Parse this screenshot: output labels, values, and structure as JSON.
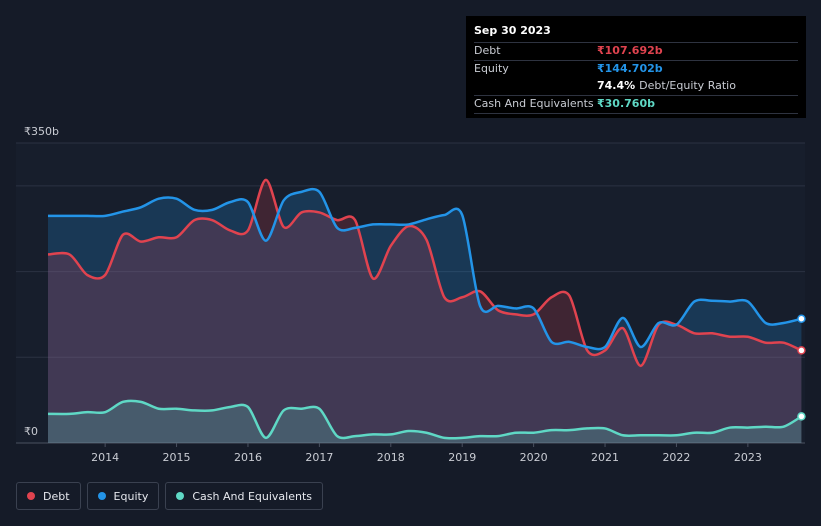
{
  "tooltip": {
    "date": "Sep 30 2023",
    "debt_label": "Debt",
    "debt_value": "₹107.692b",
    "equity_label": "Equity",
    "equity_value": "₹144.702b",
    "ratio_value": "74.4%",
    "ratio_label": "Debt/Equity Ratio",
    "cash_label": "Cash And Equivalents",
    "cash_value": "₹30.760b"
  },
  "legend": [
    {
      "label": "Debt",
      "color": "#e0434f"
    },
    {
      "label": "Equity",
      "color": "#2394e8"
    },
    {
      "label": "Cash And Equivalents",
      "color": "#5fd8c5"
    }
  ],
  "chart_data": {
    "type": "area",
    "title": "",
    "xlabel": "",
    "ylabel": "",
    "y_top_label": "₹350b",
    "y_bottom_label": "₹0",
    "ylim": [
      0,
      350
    ],
    "xlim": [
      2013.2,
      2023.8
    ],
    "x_ticks": [
      "2014",
      "2015",
      "2016",
      "2017",
      "2018",
      "2019",
      "2020",
      "2021",
      "2022",
      "2023"
    ],
    "x_tick_values": [
      2014,
      2015,
      2016,
      2017,
      2018,
      2019,
      2020,
      2021,
      2022,
      2023
    ],
    "gridlines": [
      0,
      100,
      200,
      300,
      350
    ],
    "series": [
      {
        "name": "Equity",
        "color": "#2394e8",
        "x": [
          2013.2,
          2013.5,
          2013.75,
          2014.0,
          2014.25,
          2014.5,
          2014.75,
          2015.0,
          2015.25,
          2015.5,
          2015.75,
          2016.0,
          2016.25,
          2016.5,
          2016.75,
          2017.0,
          2017.25,
          2017.5,
          2017.75,
          2018.0,
          2018.25,
          2018.5,
          2018.75,
          2019.0,
          2019.25,
          2019.5,
          2019.75,
          2020.0,
          2020.25,
          2020.5,
          2020.75,
          2021.0,
          2021.25,
          2021.5,
          2021.75,
          2022.0,
          2022.25,
          2022.5,
          2022.75,
          2023.0,
          2023.25,
          2023.5,
          2023.75
        ],
        "values": [
          265,
          265,
          265,
          265,
          270,
          275,
          285,
          285,
          272,
          272,
          281,
          281,
          236,
          283,
          293,
          293,
          251,
          251,
          255,
          255,
          255,
          261,
          266,
          266,
          160,
          160,
          157,
          157,
          118,
          118,
          112,
          112,
          146,
          112,
          140,
          138,
          165,
          166,
          165,
          165,
          140,
          140,
          145
        ]
      },
      {
        "name": "Debt",
        "color": "#e0434f",
        "x": [
          2013.2,
          2013.5,
          2013.75,
          2014.0,
          2014.25,
          2014.5,
          2014.75,
          2015.0,
          2015.25,
          2015.5,
          2015.75,
          2016.0,
          2016.25,
          2016.5,
          2016.75,
          2017.0,
          2017.25,
          2017.5,
          2017.75,
          2018.0,
          2018.25,
          2018.5,
          2018.75,
          2019.0,
          2019.25,
          2019.5,
          2019.75,
          2020.0,
          2020.25,
          2020.5,
          2020.75,
          2021.0,
          2021.25,
          2021.5,
          2021.75,
          2022.0,
          2022.25,
          2022.5,
          2022.75,
          2023.0,
          2023.25,
          2023.5,
          2023.75
        ],
        "values": [
          220,
          220,
          196,
          196,
          243,
          235,
          240,
          240,
          260,
          260,
          248,
          248,
          307,
          252,
          269,
          269,
          260,
          260,
          192,
          230,
          253,
          237,
          170,
          170,
          177,
          155,
          150,
          150,
          170,
          172,
          108,
          108,
          134,
          90,
          138,
          138,
          128,
          128,
          124,
          124,
          117,
          117,
          108
        ]
      },
      {
        "name": "Cash And Equivalents",
        "color": "#5fd8c5",
        "x": [
          2013.2,
          2013.5,
          2013.75,
          2014.0,
          2014.25,
          2014.5,
          2014.75,
          2015.0,
          2015.25,
          2015.5,
          2015.75,
          2016.0,
          2016.25,
          2016.5,
          2016.75,
          2017.0,
          2017.25,
          2017.5,
          2017.75,
          2018.0,
          2018.25,
          2018.5,
          2018.75,
          2019.0,
          2019.25,
          2019.5,
          2019.75,
          2020.0,
          2020.25,
          2020.5,
          2020.75,
          2021.0,
          2021.25,
          2021.5,
          2021.75,
          2022.0,
          2022.25,
          2022.5,
          2022.75,
          2023.0,
          2023.25,
          2023.5,
          2023.75
        ],
        "values": [
          34,
          34,
          36,
          36,
          48,
          48,
          40,
          40,
          38,
          38,
          42,
          42,
          6,
          38,
          40,
          40,
          8,
          8,
          10,
          10,
          14,
          12,
          6,
          6,
          8,
          8,
          12,
          12,
          15,
          15,
          17,
          17,
          9,
          9,
          9,
          9,
          12,
          12,
          18,
          18,
          19,
          19,
          31
        ]
      }
    ]
  }
}
